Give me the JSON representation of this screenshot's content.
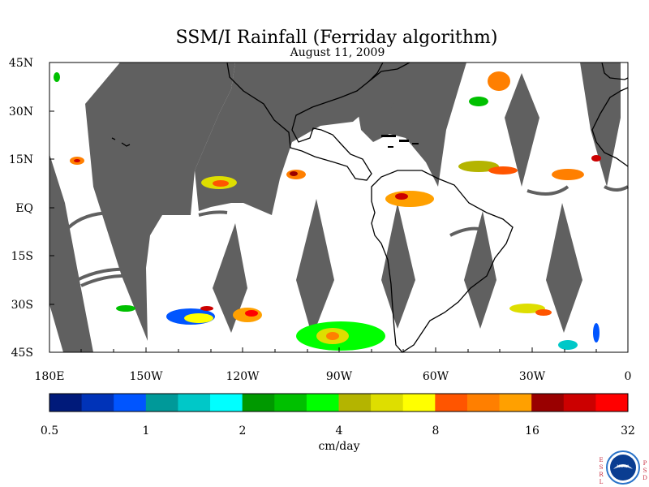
{
  "title": "SSM/I Rainfall (Ferriday algorithm)",
  "subtitle": "August 11, 2009",
  "y_axis_labels": [
    "45N",
    "30N",
    "15N",
    "EQ",
    "15S",
    "30S",
    "45S"
  ],
  "x_axis_labels": [
    "180E",
    "150W",
    "120W",
    "90W",
    "60W",
    "30W",
    "0"
  ],
  "colorbar": {
    "colors": [
      "#001a7a",
      "#0033b8",
      "#0055ff",
      "#009999",
      "#00c8c8",
      "#00ffff",
      "#009900",
      "#00c000",
      "#00ff00",
      "#b4b400",
      "#dede00",
      "#ffff00",
      "#ff5500",
      "#ff7f00",
      "#ffa000",
      "#990000",
      "#cc0000",
      "#ff0000"
    ],
    "tick_labels": [
      "0.5",
      "1",
      "2",
      "4",
      "8",
      "16",
      "32"
    ],
    "unit_label": "cm/day"
  },
  "logo": {
    "left_letters": [
      "E",
      "S",
      "R",
      "L"
    ],
    "right_letters": [
      "P",
      "S",
      "D"
    ],
    "badge_text": "NOAA"
  },
  "colors": {
    "land_outline": "#000000",
    "swath_gap": "#606060",
    "ocean_no_rain": "#ffffff"
  }
}
